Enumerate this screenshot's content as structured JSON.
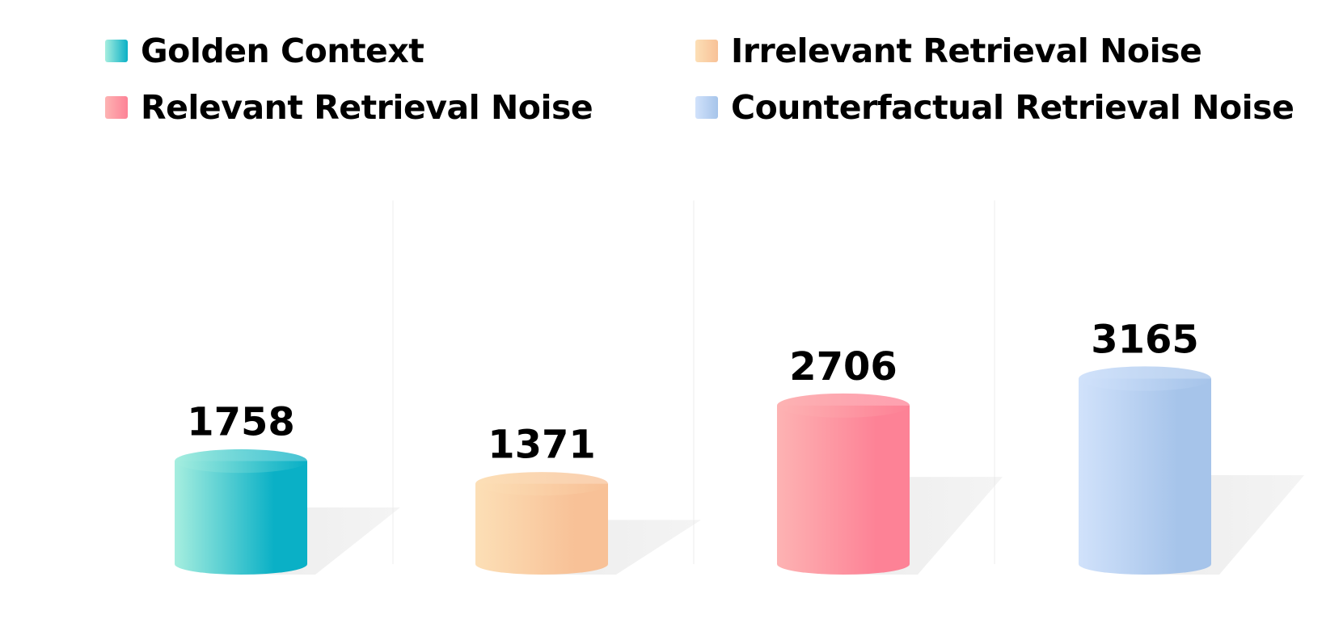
{
  "chart_data": {
    "type": "bar",
    "style": "3d-cylinder",
    "categories": [
      "Golden Context",
      "Irrelevant Retrieval Noise",
      "Relevant Retrieval Noise",
      "Counterfactual Retrieval Noise"
    ],
    "values": [
      1758,
      1371,
      2706,
      3165
    ],
    "value_labels": [
      "1758",
      "1371",
      "2706",
      "3165"
    ],
    "colors": [
      "#0ab0c6",
      "#f8c197",
      "#fd8296",
      "#a6c4ea"
    ],
    "light_colors": [
      "#a6eedf",
      "#fcdfb6",
      "#fdb3b3",
      "#d1e2fb"
    ],
    "title": "",
    "xlabel": "",
    "ylabel": "",
    "ylim": [
      0,
      3450
    ],
    "grid": false,
    "axes_visible": false,
    "legend_position": "top",
    "legend": [
      {
        "label": "Golden Context",
        "color": "#0ab0c6"
      },
      {
        "label": "Irrelevant Retrieval Noise",
        "color": "#f8c197"
      },
      {
        "label": "Relevant Retrieval Noise",
        "color": "#fd8296"
      },
      {
        "label": "Counterfactual Retrieval Noise",
        "color": "#a6c4ea"
      }
    ]
  }
}
